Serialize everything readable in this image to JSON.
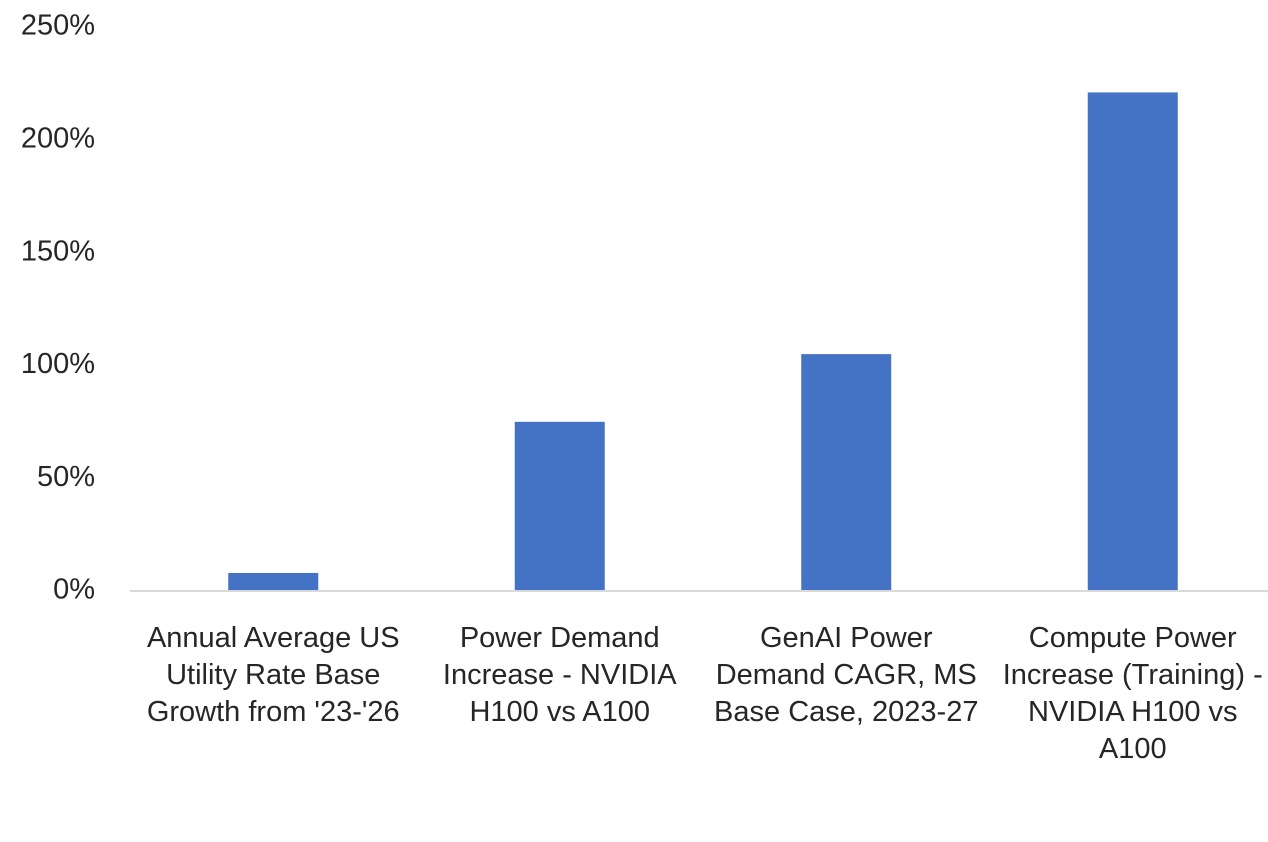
{
  "chart_data": {
    "type": "bar",
    "categories": [
      "Annual Average US Utility Rate Base Growth from '23-'26",
      "Power Demand Increase - NVIDIA H100 vs A100",
      "GenAI Power Demand CAGR, MS Base Case, 2023-27",
      "Compute Power Increase (Training) - NVIDIA H100 vs A100"
    ],
    "values": [
      8,
      75,
      105,
      221
    ],
    "color": "#4472c4",
    "ylim": [
      0,
      250
    ],
    "yticks": [
      {
        "value": 0,
        "label": "0%"
      },
      {
        "value": 50,
        "label": "50%"
      },
      {
        "value": 100,
        "label": "100%"
      },
      {
        "value": 150,
        "label": "150%"
      },
      {
        "value": 200,
        "label": "200%"
      },
      {
        "value": 250,
        "label": "250%"
      }
    ],
    "grid": false
  }
}
